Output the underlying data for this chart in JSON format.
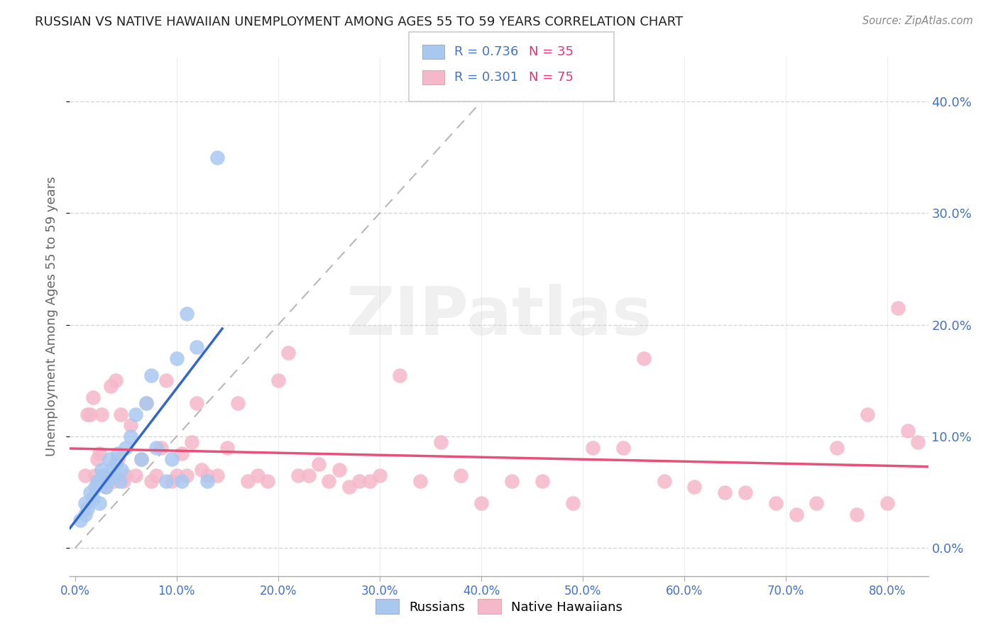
{
  "title": "RUSSIAN VS NATIVE HAWAIIAN UNEMPLOYMENT AMONG AGES 55 TO 59 YEARS CORRELATION CHART",
  "source": "Source: ZipAtlas.com",
  "ylabel": "Unemployment Among Ages 55 to 59 years",
  "xlim": [
    -0.005,
    0.84
  ],
  "ylim": [
    -0.025,
    0.44
  ],
  "xtick_vals": [
    0.0,
    0.1,
    0.2,
    0.3,
    0.4,
    0.5,
    0.6,
    0.7,
    0.8
  ],
  "xtick_labels": [
    "0.0%",
    "10.0%",
    "20.0%",
    "30.0%",
    "40.0%",
    "50.0%",
    "60.0%",
    "70.0%",
    "80.0%"
  ],
  "ytick_vals": [
    0.0,
    0.1,
    0.2,
    0.3,
    0.4
  ],
  "ytick_labels": [
    "0.0%",
    "10.0%",
    "20.0%",
    "30.0%",
    "40.0%"
  ],
  "russian_color": "#a8c8f0",
  "hawaiian_color": "#f5b8cb",
  "russian_line_color": "#3366cc",
  "hawaiian_line_color": "#e8507a",
  "russian_R": 0.736,
  "russian_N": 35,
  "hawaiian_R": 0.301,
  "hawaiian_N": 75,
  "grid_color": "#cccccc",
  "tick_color": "#4472c4",
  "diag_color": "#b0b0b0",
  "watermark": "ZIPatlas",
  "russian_scatter_x": [
    0.005,
    0.01,
    0.01,
    0.012,
    0.015,
    0.018,
    0.02,
    0.022,
    0.024,
    0.026,
    0.028,
    0.03,
    0.032,
    0.034,
    0.036,
    0.038,
    0.04,
    0.042,
    0.044,
    0.046,
    0.05,
    0.055,
    0.06,
    0.065,
    0.07,
    0.075,
    0.08,
    0.09,
    0.095,
    0.1,
    0.105,
    0.11,
    0.12,
    0.13,
    0.14
  ],
  "russian_scatter_y": [
    0.025,
    0.03,
    0.04,
    0.035,
    0.05,
    0.045,
    0.055,
    0.06,
    0.04,
    0.07,
    0.065,
    0.055,
    0.06,
    0.08,
    0.07,
    0.065,
    0.075,
    0.085,
    0.06,
    0.07,
    0.09,
    0.1,
    0.12,
    0.08,
    0.13,
    0.155,
    0.09,
    0.06,
    0.08,
    0.17,
    0.06,
    0.21,
    0.18,
    0.06,
    0.35
  ],
  "hawaiian_scatter_x": [
    0.01,
    0.012,
    0.015,
    0.018,
    0.02,
    0.022,
    0.024,
    0.026,
    0.028,
    0.03,
    0.035,
    0.038,
    0.04,
    0.042,
    0.045,
    0.048,
    0.05,
    0.055,
    0.06,
    0.065,
    0.07,
    0.075,
    0.08,
    0.085,
    0.09,
    0.095,
    0.1,
    0.105,
    0.11,
    0.115,
    0.12,
    0.125,
    0.13,
    0.14,
    0.15,
    0.16,
    0.17,
    0.18,
    0.19,
    0.2,
    0.21,
    0.22,
    0.23,
    0.24,
    0.25,
    0.26,
    0.27,
    0.28,
    0.29,
    0.3,
    0.32,
    0.34,
    0.36,
    0.38,
    0.4,
    0.43,
    0.46,
    0.49,
    0.51,
    0.54,
    0.56,
    0.58,
    0.61,
    0.64,
    0.66,
    0.69,
    0.71,
    0.73,
    0.75,
    0.77,
    0.78,
    0.8,
    0.81,
    0.82,
    0.83
  ],
  "hawaiian_scatter_y": [
    0.065,
    0.12,
    0.12,
    0.135,
    0.065,
    0.08,
    0.085,
    0.12,
    0.065,
    0.055,
    0.145,
    0.06,
    0.15,
    0.08,
    0.12,
    0.06,
    0.065,
    0.11,
    0.065,
    0.08,
    0.13,
    0.06,
    0.065,
    0.09,
    0.15,
    0.06,
    0.065,
    0.085,
    0.065,
    0.095,
    0.13,
    0.07,
    0.065,
    0.065,
    0.09,
    0.13,
    0.06,
    0.065,
    0.06,
    0.15,
    0.175,
    0.065,
    0.065,
    0.075,
    0.06,
    0.07,
    0.055,
    0.06,
    0.06,
    0.065,
    0.155,
    0.06,
    0.095,
    0.065,
    0.04,
    0.06,
    0.06,
    0.04,
    0.09,
    0.09,
    0.17,
    0.06,
    0.055,
    0.05,
    0.05,
    0.04,
    0.03,
    0.04,
    0.09,
    0.03,
    0.12,
    0.04,
    0.215,
    0.105,
    0.095
  ]
}
